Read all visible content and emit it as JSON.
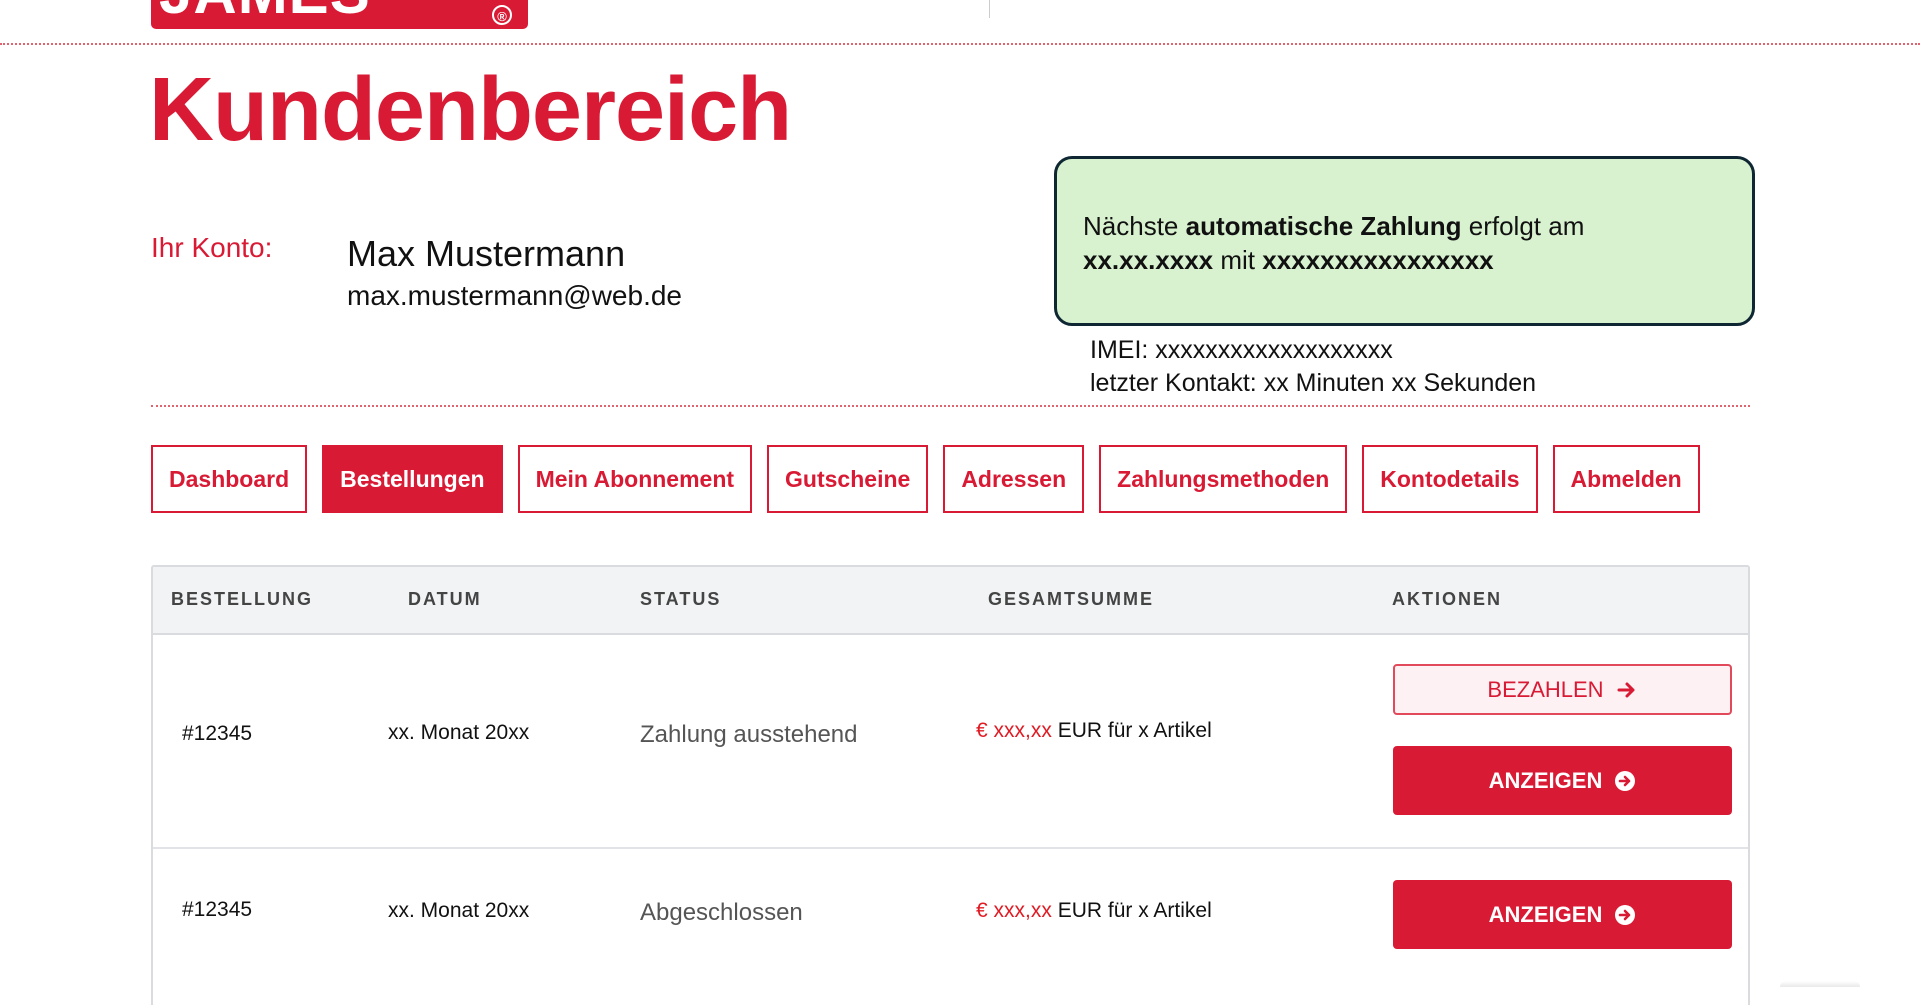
{
  "brand": {
    "logo_text": "JAMES",
    "registered_mark": "®",
    "color": "#d91a34"
  },
  "page": {
    "title": "Kundenbereich"
  },
  "account": {
    "label": "Ihr Konto:",
    "name": "Max Mustermann",
    "email": "max.mustermann@web.de"
  },
  "payment_notice": {
    "text_1": "Nächste ",
    "bold_1": "automatische Zahlung",
    "text_2": " erfolgt am",
    "bold_2": "xx.xx.xxxx",
    "text_3": " mit ",
    "bold_3": "xxxxxxxxxxxxxxxx",
    "background": "#d8f2cf"
  },
  "device": {
    "imei": "IMEI: xxxxxxxxxxxxxxxxxxx",
    "last_contact": "letzter Kontakt: xx Minuten xx Sekunden"
  },
  "nav": {
    "tabs": [
      {
        "label": "Dashboard",
        "active": false
      },
      {
        "label": "Bestellungen",
        "active": true
      },
      {
        "label": "Mein Abonnement",
        "active": false
      },
      {
        "label": "Gutscheine",
        "active": false
      },
      {
        "label": "Adressen",
        "active": false
      },
      {
        "label": "Zahlungsmethoden",
        "active": false
      },
      {
        "label": "Kontodetails",
        "active": false
      },
      {
        "label": "Abmelden",
        "active": false
      }
    ]
  },
  "orders": {
    "columns": [
      "BESTELLUNG",
      "DATUM",
      "STATUS",
      "GESAMTSUMME",
      "AKTIONEN"
    ],
    "rows": [
      {
        "number": "#12345",
        "date": "xx. Monat 20xx",
        "status": "Zahlung ausstehend",
        "price": "€ xxx,xx",
        "total_suffix": " EUR für x Artikel",
        "pay_label": "BEZAHLEN",
        "view_label": "ANZEIGEN"
      },
      {
        "number": "#12345",
        "date": "xx. Monat 20xx",
        "status": "Abgeschlossen",
        "price": "€ xxx,xx",
        "total_suffix": " EUR für x Artikel",
        "view_label": "ANZEIGEN"
      }
    ]
  },
  "icons": {
    "pay_button_icon": "arrow-right-icon",
    "view_button_icon": "arrow-circle-right-icon"
  }
}
